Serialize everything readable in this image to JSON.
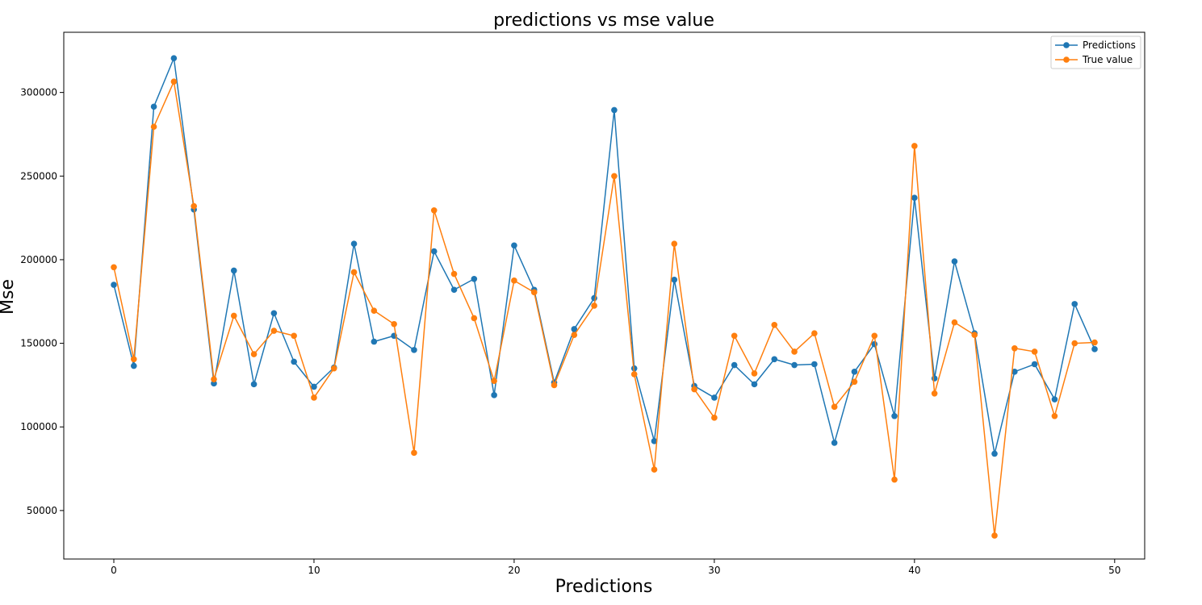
{
  "chart_data": {
    "type": "line",
    "title": "predictions vs mse value",
    "xlabel": "Predictions",
    "ylabel": "Mse",
    "xlim": [
      -2.5,
      51.5
    ],
    "ylim": [
      21000,
      336000
    ],
    "xticks": [
      0,
      10,
      20,
      30,
      40,
      50
    ],
    "yticks": [
      50000,
      100000,
      150000,
      200000,
      250000,
      300000
    ],
    "grid": false,
    "legend_position": "top-right",
    "x": [
      0,
      1,
      2,
      3,
      4,
      5,
      6,
      7,
      8,
      9,
      10,
      11,
      12,
      13,
      14,
      15,
      16,
      17,
      18,
      19,
      20,
      21,
      22,
      23,
      24,
      25,
      26,
      27,
      28,
      29,
      30,
      31,
      32,
      33,
      34,
      35,
      36,
      37,
      38,
      39,
      40,
      41,
      42,
      43,
      44,
      45,
      46,
      47,
      48,
      49
    ],
    "series": [
      {
        "name": "Predictions",
        "color": "#1f77b4",
        "values": [
          185000,
          136500,
          291500,
          320500,
          230000,
          126000,
          193500,
          125500,
          168000,
          139000,
          124000,
          135500,
          209500,
          151000,
          154500,
          146000,
          205000,
          182000,
          188500,
          119000,
          208500,
          182000,
          126500,
          158500,
          177000,
          289500,
          135000,
          91500,
          188000,
          124500,
          117500,
          137000,
          125500,
          140500,
          137000,
          137500,
          90500,
          133000,
          149500,
          106500,
          237000,
          129000,
          199000,
          156000,
          84000,
          133000,
          137500,
          116500,
          173500,
          146500
        ]
      },
      {
        "name": "True value",
        "color": "#ff7f0e",
        "values": [
          195500,
          140500,
          279500,
          306500,
          232000,
          128500,
          166500,
          143500,
          157500,
          154500,
          117500,
          135000,
          192500,
          169500,
          161500,
          84500,
          229500,
          191500,
          165000,
          127500,
          187500,
          180500,
          125000,
          155000,
          172500,
          250000,
          131500,
          74500,
          209500,
          122500,
          105500,
          154500,
          132000,
          161000,
          145000,
          156000,
          112000,
          127000,
          154500,
          68500,
          268000,
          120000,
          162500,
          155000,
          35000,
          147000,
          145000,
          106500,
          150000,
          150500
        ]
      }
    ]
  }
}
